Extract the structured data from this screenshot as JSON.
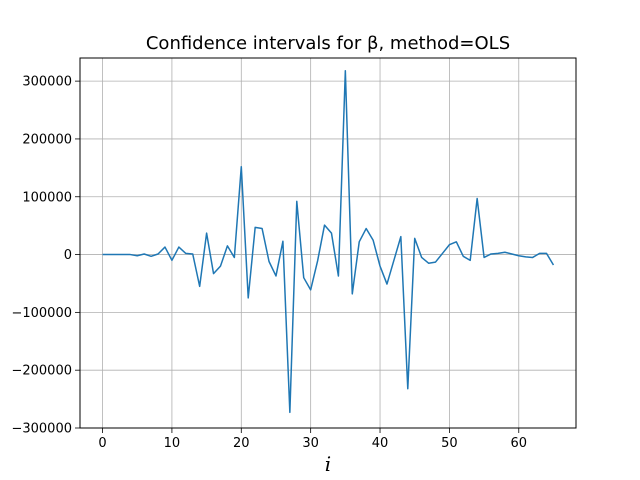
{
  "chart_data": {
    "type": "line",
    "title": "Confidence intervals for β, method=OLS",
    "xlabel": "i",
    "ylabel": "",
    "xlim": [
      -3.25,
      68.25
    ],
    "ylim": [
      -300000,
      340000
    ],
    "xticks": [
      0,
      10,
      20,
      30,
      40,
      50,
      60
    ],
    "yticks": [
      -300000,
      -200000,
      -100000,
      0,
      100000,
      200000,
      300000
    ],
    "grid": true,
    "legend": "none",
    "series": [
      {
        "color": "#1f77b4",
        "x": [
          0,
          1,
          2,
          3,
          4,
          5,
          6,
          7,
          8,
          9,
          10,
          11,
          12,
          13,
          14,
          15,
          16,
          17,
          18,
          19,
          20,
          21,
          22,
          23,
          24,
          25,
          26,
          27,
          28,
          29,
          30,
          31,
          32,
          33,
          34,
          35,
          36,
          37,
          38,
          39,
          40,
          41,
          42,
          43,
          44,
          45,
          46,
          47,
          48,
          49,
          50,
          51,
          52,
          53,
          54,
          55,
          56,
          57,
          58,
          59,
          60,
          61,
          62,
          63,
          64,
          65
        ],
        "values": [
          0,
          0,
          0,
          0,
          0,
          -2000,
          1000,
          -3000,
          1000,
          13000,
          -10000,
          13000,
          2000,
          1000,
          -55000,
          37000,
          -33000,
          -20000,
          15000,
          -5000,
          152000,
          -75000,
          47000,
          45000,
          -12000,
          -37000,
          23000,
          -273000,
          92000,
          -40000,
          -61000,
          -11000,
          51000,
          37000,
          -37000,
          318000,
          -68000,
          22000,
          45000,
          25000,
          -20000,
          -51000,
          -10000,
          31000,
          -232000,
          28000,
          -5000,
          -15000,
          -13000,
          2000,
          17000,
          22000,
          -3000,
          -10000,
          97000,
          -5000,
          1000,
          2000,
          4000,
          1000,
          -2000,
          -4000,
          -5000,
          2000,
          2000,
          -18000
        ]
      }
    ]
  }
}
